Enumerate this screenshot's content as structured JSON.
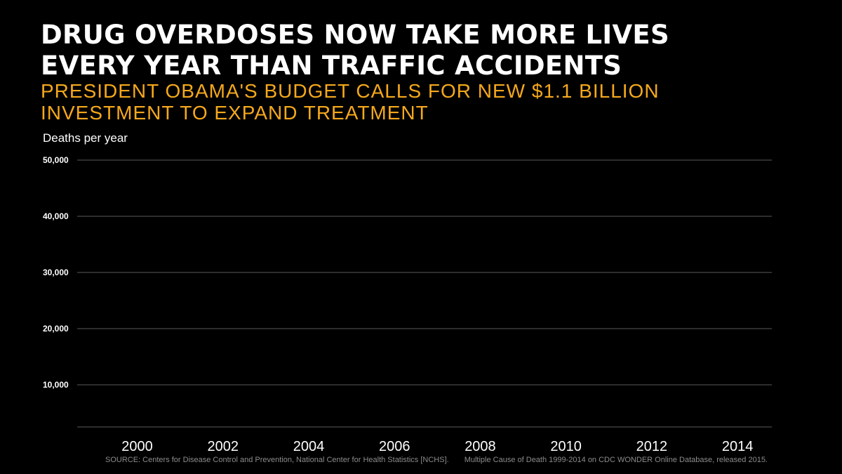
{
  "title_lines": [
    "DRUG OVERDOSES NOW TAKE MORE LIVES",
    "EVERY YEAR THAN TRAFFIC ACCIDENTS"
  ],
  "subtitle_lines": [
    "PRESIDENT OBAMA'S BUDGET CALLS FOR NEW $1.1 BILLION",
    "INVESTMENT TO EXPAND TREATMENT"
  ],
  "source": {
    "part1": "SOURCE: Centers for Disease Control and Prevention, National Center for Health Statistics [NCHS].",
    "part2": "Multiple Cause of Death 1999-2014 on CDC WONDER Online Database, released 2015."
  },
  "colors": {
    "background": "#000000",
    "title": "#ffffff",
    "subtitle": "#f5a81c",
    "gridline": "#5a5a5a",
    "tick_label": "#ffffff",
    "source": "#8c8c8c"
  },
  "chart_data": {
    "type": "line",
    "title": "DRUG OVERDOSES NOW TAKE MORE LIVES EVERY YEAR THAN TRAFFIC ACCIDENTS",
    "subtitle": "PRESIDENT OBAMA'S BUDGET CALLS FOR NEW $1.1 BILLION INVESTMENT TO EXPAND TREATMENT",
    "ylabel": "Deaths per year",
    "xlabel": "",
    "y_ticks": [
      10000,
      20000,
      30000,
      40000,
      50000
    ],
    "y_tick_labels": [
      "10,000",
      "20,000",
      "30,000",
      "40,000",
      "50,000"
    ],
    "ylim": [
      2500,
      50000
    ],
    "x_ticks": [
      2000,
      2002,
      2004,
      2006,
      2008,
      2010,
      2012,
      2014
    ],
    "x_tick_labels": [
      "2000",
      "2002",
      "2004",
      "2006",
      "2008",
      "2010",
      "2012",
      "2014"
    ],
    "xlim": [
      1998.6,
      2014.8
    ],
    "grid": true,
    "series": []
  }
}
